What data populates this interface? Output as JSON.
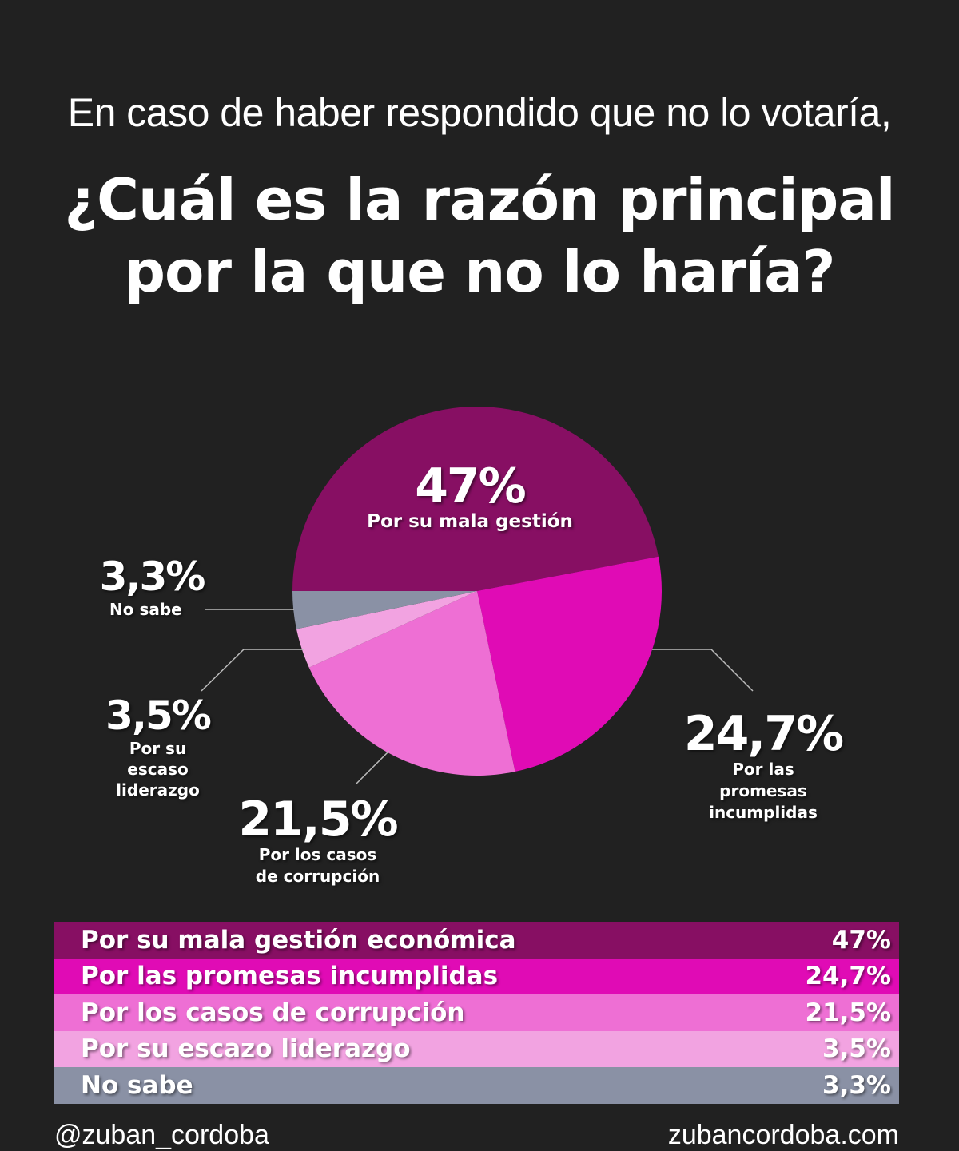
{
  "header": {
    "subtitle": "En caso de haber respondido que no lo votaría,",
    "title_line1": "¿Cuál es la razón principal",
    "title_line2": "por la que no lo haría?"
  },
  "chart_data": {
    "type": "pie",
    "title": "¿Cuál es la razón principal por la que no lo haría?",
    "start": "left, clockwise",
    "slices": [
      {
        "label": "Por su mala gestión económica",
        "short_label": "Por su mala gestión",
        "value": 47,
        "display": "47%",
        "color": "#870f63"
      },
      {
        "label": "Por las promesas incumplidas",
        "short_label": "Por las promesas incumplidas",
        "value": 24.7,
        "display": "24,7%",
        "color": "#e00bb5"
      },
      {
        "label": "Por los casos de corrupción",
        "short_label": "Por los casos de corrupción",
        "value": 21.5,
        "display": "21,5%",
        "color": "#ee6fd4"
      },
      {
        "label": "Por su escazo liderazgo",
        "short_label": "Por su escaso liderazgo",
        "value": 3.5,
        "display": "3,5%",
        "color": "#f2a3e1"
      },
      {
        "label": "No sabe",
        "short_label": "No sabe",
        "value": 3.3,
        "display": "3,3%",
        "color": "#8a91a5"
      }
    ]
  },
  "footer": {
    "handle": "@zuban_cordoba",
    "website": "zubancordoba.com"
  }
}
